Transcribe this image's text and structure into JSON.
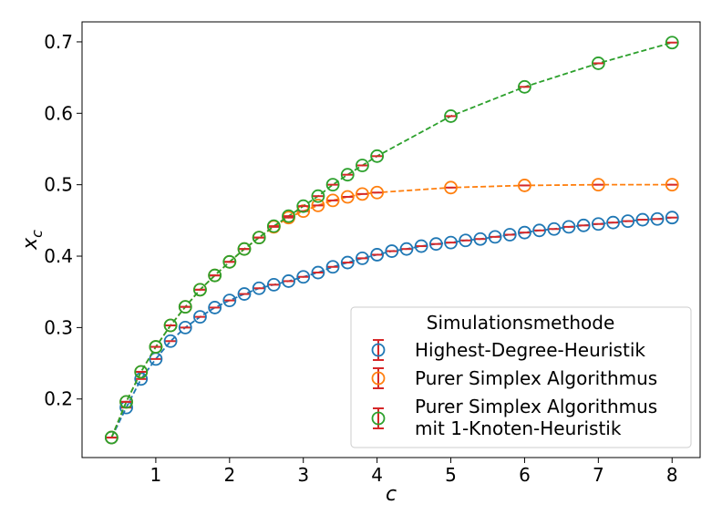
{
  "chart_data": {
    "type": "scatter",
    "xlabel": "c",
    "ylabel": "x",
    "ylabel_sub": "c",
    "xlim": [
      -0.0,
      8.38
    ],
    "ylim": [
      0.118,
      0.728
    ],
    "xticks": [
      1,
      2,
      3,
      4,
      5,
      6,
      7,
      8
    ],
    "yticks": [
      0.2,
      0.3,
      0.4,
      0.5,
      0.6,
      0.7
    ],
    "xtick_labels": [
      "1",
      "2",
      "3",
      "4",
      "5",
      "6",
      "7",
      "8"
    ],
    "ytick_labels": [
      "0.2",
      "0.3",
      "0.4",
      "0.5",
      "0.6",
      "0.7"
    ],
    "grid": false,
    "legend": {
      "title": "Simulationsmethode",
      "placement": "lower-right"
    },
    "errorbar_color": "#d62728",
    "series": [
      {
        "name": "Highest-Degree-Heuristik",
        "label_lines": [
          "Highest-Degree-Heuristik"
        ],
        "color": "#1f77b4",
        "x": [
          0.4,
          0.6,
          0.8,
          1.0,
          1.2,
          1.4,
          1.6,
          1.8,
          2.0,
          2.2,
          2.4,
          2.6,
          2.8,
          3.0,
          3.2,
          3.4,
          3.6,
          3.8,
          4.0,
          4.2,
          4.4,
          4.6,
          4.8,
          5.0,
          5.2,
          5.4,
          5.6,
          5.8,
          6.0,
          6.2,
          6.4,
          6.6,
          6.8,
          7.0,
          7.2,
          7.4,
          7.6,
          7.8,
          8.0
        ],
        "y": [
          0.146,
          0.188,
          0.228,
          0.256,
          0.281,
          0.3,
          0.315,
          0.328,
          0.338,
          0.347,
          0.355,
          0.36,
          0.365,
          0.371,
          0.377,
          0.385,
          0.391,
          0.397,
          0.402,
          0.407,
          0.41,
          0.414,
          0.417,
          0.419,
          0.422,
          0.424,
          0.427,
          0.43,
          0.433,
          0.436,
          0.438,
          0.441,
          0.443,
          0.445,
          0.447,
          0.449,
          0.451,
          0.452,
          0.454
        ]
      },
      {
        "name": "Purer Simplex Algorithmus",
        "label_lines": [
          "Purer Simplex Algorithmus"
        ],
        "color": "#ff7f0e",
        "x": [
          0.4,
          0.6,
          0.8,
          1.0,
          1.2,
          1.4,
          1.6,
          1.8,
          2.0,
          2.2,
          2.4,
          2.6,
          2.8,
          3.0,
          3.2,
          3.4,
          3.6,
          3.8,
          4.0,
          5.0,
          6.0,
          7.0,
          8.0
        ],
        "y": [
          0.146,
          0.196,
          0.238,
          0.273,
          0.303,
          0.329,
          0.353,
          0.373,
          0.392,
          0.41,
          0.426,
          0.441,
          0.454,
          0.463,
          0.471,
          0.478,
          0.483,
          0.487,
          0.489,
          0.496,
          0.499,
          0.5,
          0.5
        ]
      },
      {
        "name": "Purer Simplex Algorithmus mit 1-Knoten-Heuristik",
        "label_lines": [
          "Purer Simplex Algorithmus",
          "mit 1-Knoten-Heuristik"
        ],
        "color": "#2ca02c",
        "x": [
          0.4,
          0.6,
          0.8,
          1.0,
          1.2,
          1.4,
          1.6,
          1.8,
          2.0,
          2.2,
          2.4,
          2.6,
          2.8,
          3.0,
          3.2,
          3.4,
          3.6,
          3.8,
          4.0,
          5.0,
          6.0,
          7.0,
          8.0
        ],
        "y": [
          0.146,
          0.196,
          0.238,
          0.273,
          0.303,
          0.329,
          0.353,
          0.373,
          0.392,
          0.41,
          0.426,
          0.442,
          0.456,
          0.47,
          0.484,
          0.5,
          0.514,
          0.527,
          0.54,
          0.596,
          0.637,
          0.67,
          0.699
        ]
      }
    ]
  }
}
